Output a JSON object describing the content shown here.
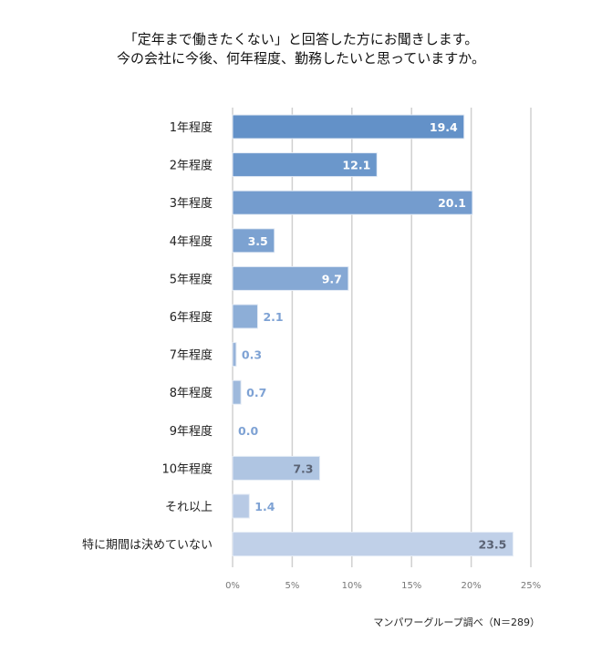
{
  "title_lines": [
    "「定年まで働きたくない」と回答した方にお聞きします。",
    "今の会社に今後、何年程度、勤務したいと思っていますか。"
  ],
  "source": "マンパワーグループ調べ（N＝289）",
  "chart_data": {
    "type": "bar",
    "orientation": "horizontal",
    "categories": [
      "1年程度",
      "2年程度",
      "3年程度",
      "4年程度",
      "5年程度",
      "6年程度",
      "7年程度",
      "8年程度",
      "9年程度",
      "10年程度",
      "それ以上",
      "特に期間は決めていない"
    ],
    "values": [
      19.4,
      12.1,
      20.1,
      3.5,
      9.7,
      2.1,
      0.3,
      0.7,
      0.0,
      7.3,
      1.4,
      23.5
    ],
    "value_labels": [
      "19.4",
      "12.1",
      "20.1",
      "3.5",
      "9.7",
      "2.1",
      "0.3",
      "0.7",
      "0.0",
      "7.3",
      "1.4",
      "23.5"
    ],
    "xlim": [
      0,
      25
    ],
    "xticks": [
      "0%",
      "5%",
      "10%",
      "15%",
      "20%",
      "25%"
    ],
    "grid": true,
    "colors": {
      "start": "#6391c8",
      "end": "#c0d0e8",
      "label_outside": "#7ea2d4",
      "label_dark": "#5a6273"
    }
  }
}
